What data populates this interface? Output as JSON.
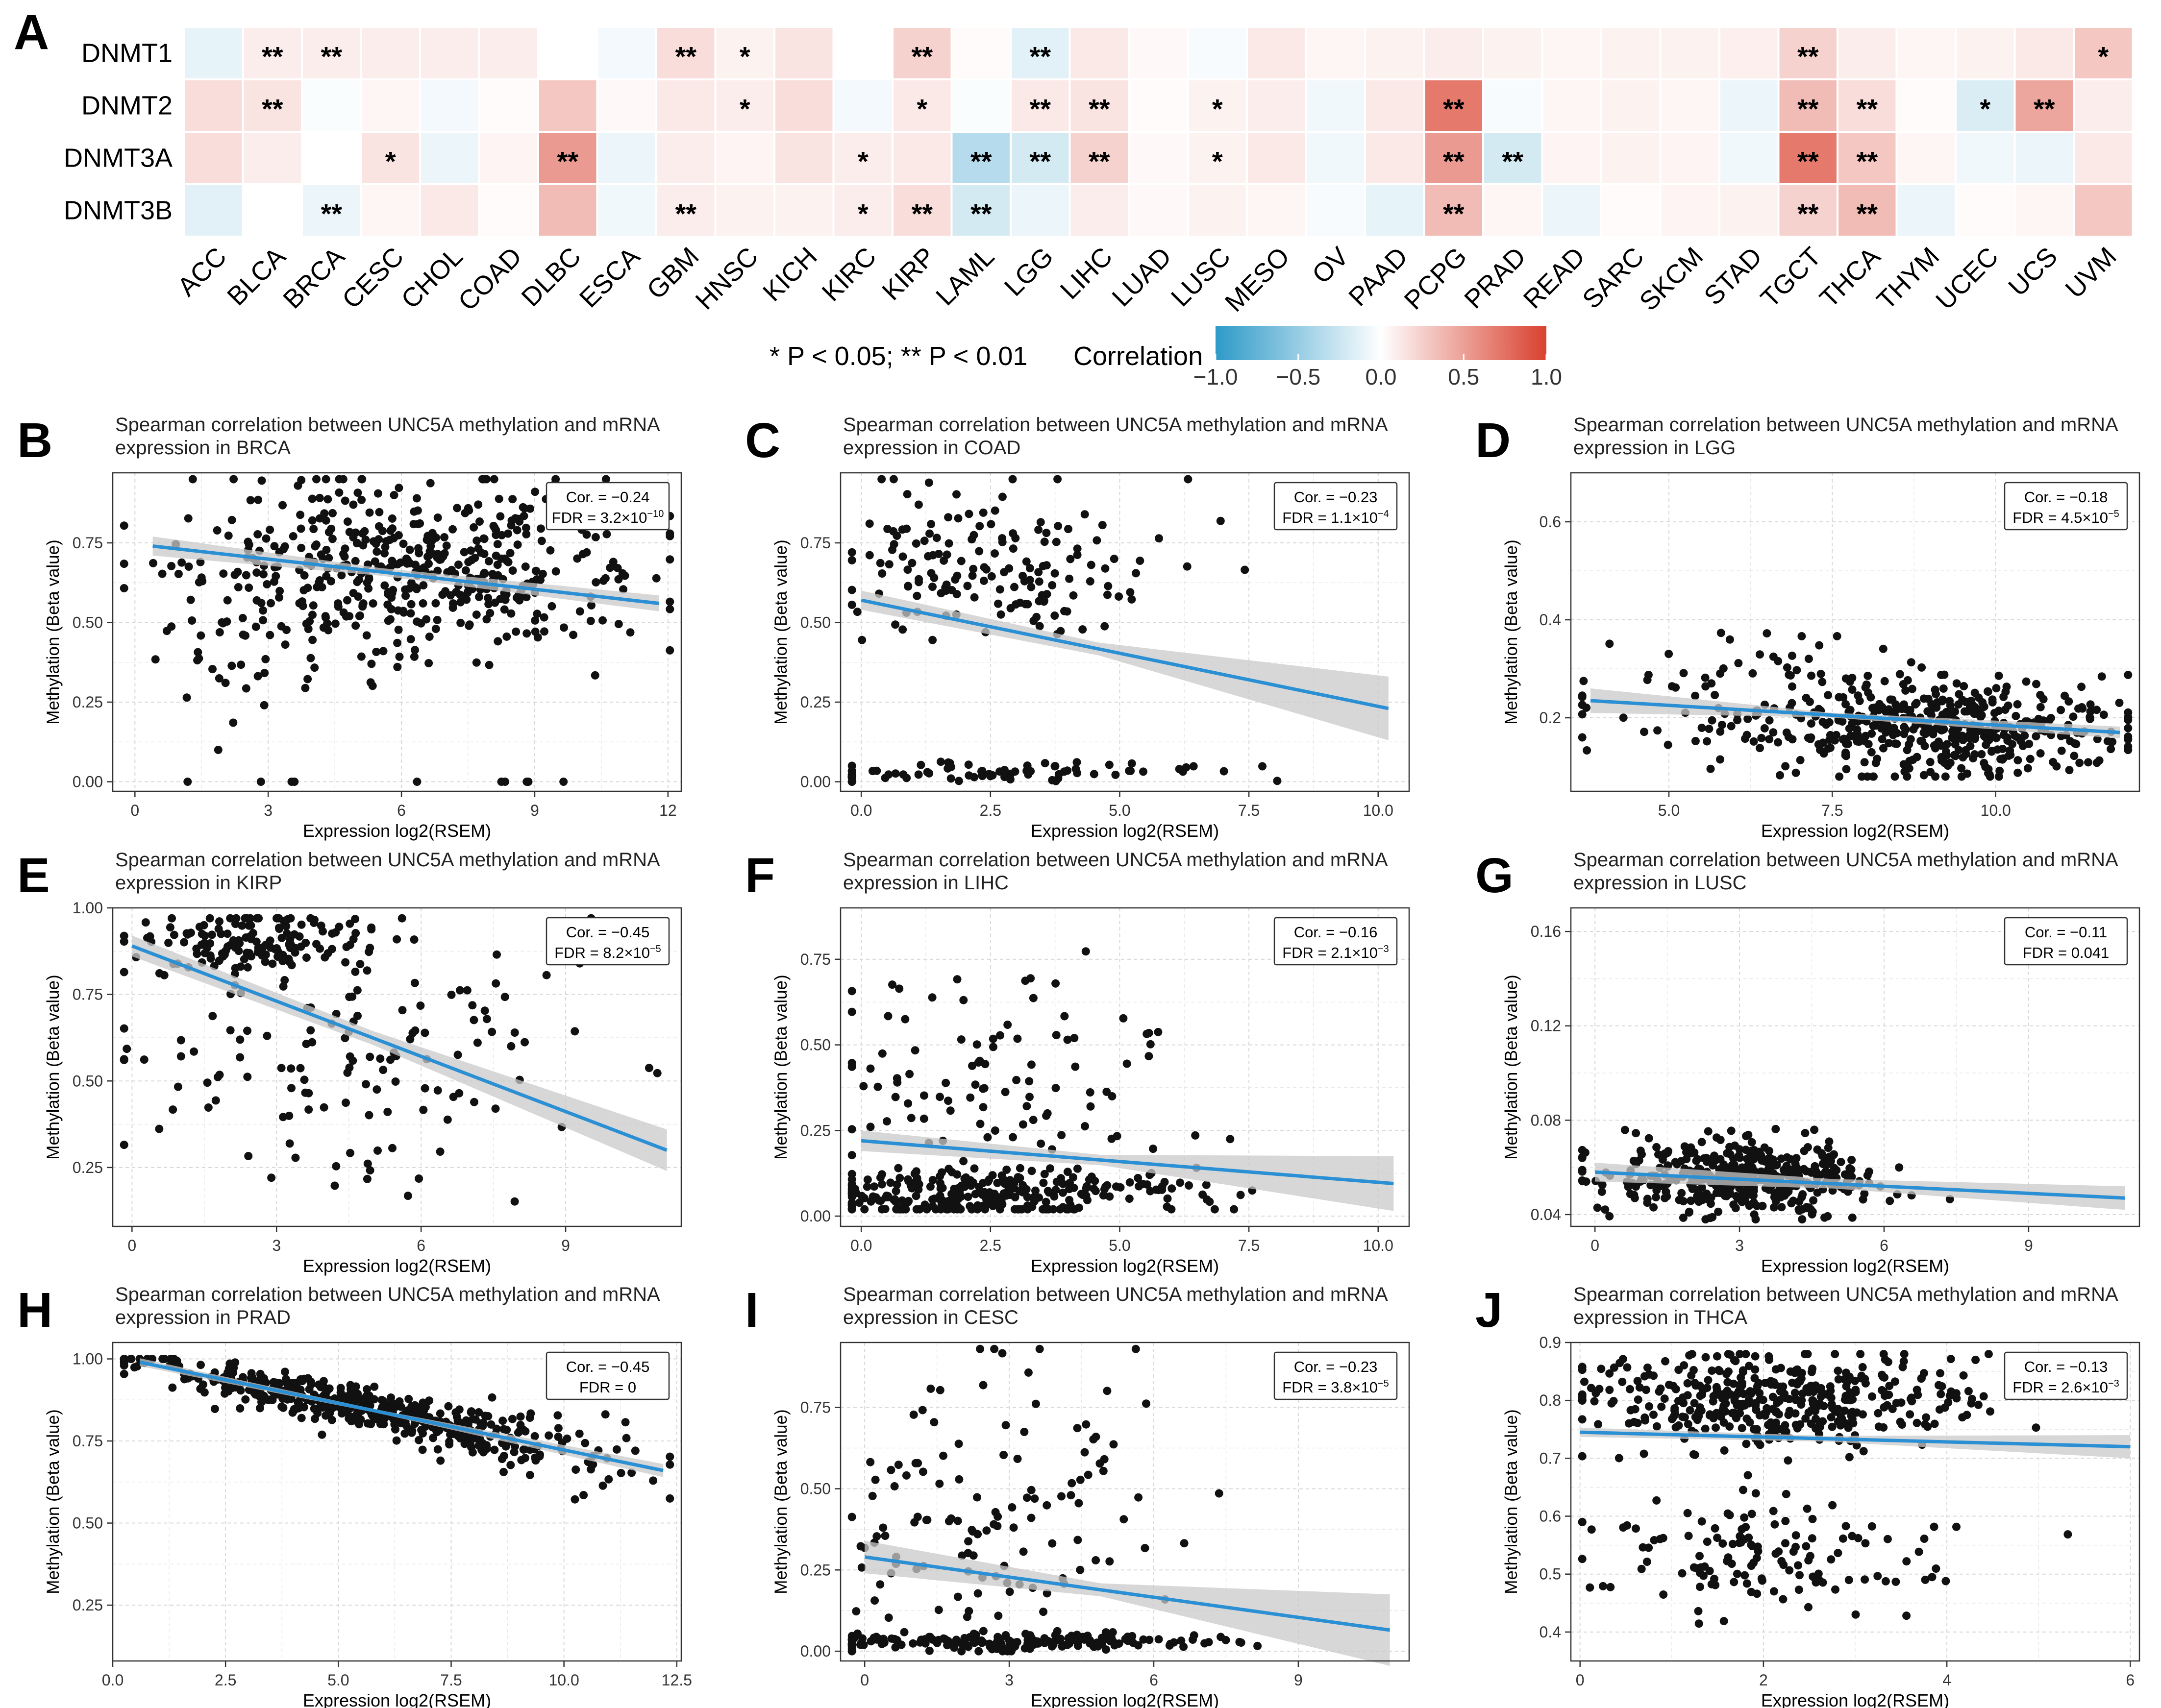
{
  "colors": {
    "neg": "#2e9ac8",
    "zero": "#ffffff",
    "pos": "#d9412f",
    "line": "#2b8fd4",
    "band": "#c9c9c9",
    "point": "#111111",
    "grid": "#d8d8d8"
  },
  "panel_a": {
    "letter": "A",
    "rows": [
      "DNMT1",
      "DNMT2",
      "DNMT3A",
      "DNMT3B"
    ],
    "columns": [
      "ACC",
      "BLCA",
      "BRCA",
      "CESC",
      "CHOL",
      "COAD",
      "DLBC",
      "ESCA",
      "GBM",
      "HNSC",
      "KICH",
      "KIRC",
      "KIRP",
      "LAML",
      "LGG",
      "LIHC",
      "LUAD",
      "LUSC",
      "MESO",
      "OV",
      "PAAD",
      "PCPG",
      "PRAD",
      "READ",
      "SARC",
      "SKCM",
      "STAD",
      "TGCT",
      "THCA",
      "THYM",
      "UCEC",
      "UCS",
      "UVM"
    ],
    "values": [
      [
        -0.1,
        0.08,
        0.08,
        0.08,
        0.08,
        0.08,
        0.0,
        -0.05,
        0.15,
        0.06,
        0.12,
        0.0,
        0.2,
        0.02,
        -0.12,
        0.1,
        0.03,
        -0.03,
        0.1,
        0.04,
        0.06,
        0.08,
        0.06,
        0.04,
        0.06,
        0.06,
        0.07,
        0.2,
        0.08,
        0.04,
        0.06,
        0.1,
        0.25
      ],
      [
        0.15,
        0.12,
        -0.02,
        0.04,
        -0.05,
        0.02,
        0.25,
        0.03,
        0.1,
        0.08,
        0.15,
        -0.05,
        0.1,
        -0.02,
        0.1,
        0.12,
        0.02,
        0.06,
        0.08,
        -0.06,
        0.1,
        0.6,
        -0.03,
        0.04,
        0.06,
        0.04,
        -0.08,
        0.3,
        0.15,
        0.02,
        -0.15,
        0.4,
        0.08
      ],
      [
        0.15,
        0.08,
        0.0,
        0.12,
        -0.08,
        0.05,
        0.45,
        -0.08,
        0.08,
        0.05,
        0.12,
        0.08,
        0.1,
        -0.3,
        -0.18,
        0.2,
        0.03,
        0.06,
        0.1,
        -0.06,
        0.1,
        0.45,
        -0.18,
        0.05,
        0.06,
        0.05,
        -0.06,
        0.6,
        0.25,
        0.04,
        -0.06,
        -0.08,
        0.1
      ],
      [
        -0.12,
        0.0,
        -0.08,
        0.04,
        0.1,
        0.02,
        0.3,
        -0.06,
        0.08,
        0.06,
        0.06,
        0.08,
        0.15,
        -0.18,
        -0.08,
        0.08,
        0.03,
        0.06,
        0.04,
        -0.03,
        -0.1,
        0.3,
        0.04,
        -0.08,
        0.02,
        0.05,
        0.06,
        0.2,
        0.3,
        -0.08,
        0.02,
        0.04,
        0.25
      ]
    ],
    "stars": [
      [
        "",
        "**",
        "**",
        "",
        "",
        "",
        "",
        "",
        "**",
        "*",
        "",
        "",
        "**",
        "",
        "**",
        "",
        "",
        "",
        "",
        "",
        "",
        "",
        "",
        "",
        "",
        "",
        "",
        "**",
        "",
        "",
        "",
        "",
        "*"
      ],
      [
        "",
        "**",
        "",
        "",
        "",
        "",
        "",
        "",
        "",
        "*",
        "",
        "",
        "*",
        "",
        "**",
        "**",
        "",
        "*",
        "",
        "",
        "",
        "**",
        "",
        "",
        "",
        "",
        "",
        "**",
        "**",
        "",
        "*",
        "**",
        ""
      ],
      [
        "",
        "",
        "",
        "*",
        "",
        "",
        "**",
        "",
        "",
        "",
        "",
        "*",
        "",
        "**",
        "**",
        "**",
        "",
        "*",
        "",
        "",
        "",
        "**",
        "**",
        "",
        "",
        "",
        "",
        "**",
        "**",
        "",
        "",
        "",
        ""
      ],
      [
        "",
        "",
        "**",
        "",
        "",
        "",
        "",
        "",
        "**",
        "",
        "",
        "*",
        "**",
        "**",
        "",
        "",
        "",
        "",
        "",
        "",
        "",
        "**",
        "",
        "",
        "",
        "",
        "",
        "**",
        "**",
        "",
        "",
        "",
        ""
      ]
    ],
    "sig_note": "* P < 0.05; ** P < 0.01",
    "legend_title": "Correlation",
    "legend_ticks": [
      "−1.0",
      "−0.5",
      "0.0",
      "0.5",
      "1.0"
    ]
  },
  "chart_data": [
    {
      "type": "scatter",
      "letter": "B",
      "title1": "Spearman correlation between UNC5A methylation and mRNA",
      "title2": "expression in BRCA",
      "xlabel": "Expression log2(RSEM)",
      "ylabel": "Methylation (Beta value)",
      "xlim": [
        -0.5,
        12.3
      ],
      "ylim": [
        -0.03,
        0.97
      ],
      "xticks": [
        0,
        3,
        6,
        9,
        12
      ],
      "xtick_labels": [
        "0",
        "3",
        "6",
        "9",
        "12"
      ],
      "yticks": [
        0,
        0.25,
        0.5,
        0.75
      ],
      "ytick_labels": [
        "0.00",
        "0.25",
        "0.50",
        "0.75"
      ],
      "cor": "Cor. = −0.24",
      "fdr": "FDR = 3.2×10",
      "fdr_exp": "−10",
      "fit": [
        0.4,
        0.74,
        11.8,
        0.56
      ],
      "band": [
        0.03,
        0.012,
        0.025
      ],
      "seed": 11,
      "n": 520,
      "cloud": [
        [
          6.5,
          2.4,
          0.68,
          0.14,
          0.65
        ],
        [
          2.5,
          1.3,
          0.55,
          0.2,
          0.15
        ]
      ],
      "low_frac": 0.03,
      "yrange": [
        0.1,
        0.95
      ]
    },
    {
      "type": "scatter",
      "letter": "C",
      "title1": "Spearman correlation between UNC5A methylation and mRNA",
      "title2": "expression in COAD",
      "xlabel": "Expression log2(RSEM)",
      "ylabel": "Methylation (Beta value)",
      "xlim": [
        -0.4,
        10.6
      ],
      "ylim": [
        -0.03,
        0.97
      ],
      "xticks": [
        0,
        2.5,
        5,
        7.5,
        10
      ],
      "xtick_labels": [
        "0.0",
        "2.5",
        "5.0",
        "7.5",
        "10.0"
      ],
      "yticks": [
        0,
        0.25,
        0.5,
        0.75
      ],
      "ytick_labels": [
        "0.00",
        "0.25",
        "0.50",
        "0.75"
      ],
      "cor": "Cor. = −0.23",
      "fdr": "FDR = 1.1×10",
      "fdr_exp": "−4",
      "fit": [
        0,
        0.57,
        10.2,
        0.23
      ],
      "band": [
        0.03,
        0.02,
        0.1
      ],
      "seed": 21,
      "n": 240,
      "cloud": [
        [
          2.6,
          1.6,
          0.68,
          0.12,
          0.65
        ],
        [
          2.5,
          2.5,
          0.03,
          0.015,
          0.35
        ]
      ],
      "low_frac": 0,
      "yrange": [
        0,
        0.95
      ]
    },
    {
      "type": "scatter",
      "letter": "D",
      "title1": "Spearman correlation between UNC5A methylation and mRNA",
      "title2": "expression in LGG",
      "xlabel": "Expression log2(RSEM)",
      "ylabel": "Methylation (Beta value)",
      "xlim": [
        3.5,
        12.2
      ],
      "ylim": [
        0.05,
        0.7
      ],
      "xticks": [
        5,
        7.5,
        10
      ],
      "xtick_labels": [
        "5.0",
        "7.5",
        "10.0"
      ],
      "yticks": [
        0.2,
        0.4,
        0.6
      ],
      "ytick_labels": [
        "0.2",
        "0.4",
        "0.6"
      ],
      "cor": "Cor. = −0.18",
      "fdr": "FDR = 4.5×10",
      "fdr_exp": "−5",
      "fit": [
        3.8,
        0.235,
        11.9,
        0.17
      ],
      "band": [
        0.025,
        0.005,
        0.012
      ],
      "seed": 31,
      "n": 520,
      "cloud": [
        [
          9.3,
          1.3,
          0.18,
          0.05,
          0.8
        ],
        [
          6.5,
          1.5,
          0.22,
          0.07,
          0.2
        ]
      ],
      "low_frac": 0,
      "yrange": [
        0.08,
        0.65
      ]
    },
    {
      "type": "scatter",
      "letter": "E",
      "title1": "Spearman correlation between UNC5A methylation and mRNA",
      "title2": "expression in KIRP",
      "xlabel": "Expression log2(RSEM)",
      "ylabel": "Methylation (Beta value)",
      "xlim": [
        -0.4,
        11.4
      ],
      "ylim": [
        0.08,
        1.0
      ],
      "xticks": [
        0,
        3,
        6,
        9
      ],
      "xtick_labels": [
        "0",
        "3",
        "6",
        "9"
      ],
      "yticks": [
        0.25,
        0.5,
        0.75,
        1.0
      ],
      "ytick_labels": [
        "0.25",
        "0.50",
        "0.75",
        "1.00"
      ],
      "cor": "Cor. = −0.45",
      "fdr": "FDR = 8.2×10",
      "fdr_exp": "−5",
      "fit": [
        0,
        0.89,
        11.1,
        0.3
      ],
      "band": [
        0.03,
        0.02,
        0.06
      ],
      "seed": 41,
      "n": 280,
      "cloud": [
        [
          2.6,
          1.4,
          0.9,
          0.05,
          0.5
        ],
        [
          4.2,
          2.5,
          0.55,
          0.2,
          0.5
        ]
      ],
      "low_frac": 0,
      "yrange": [
        0.1,
        0.97
      ]
    },
    {
      "type": "scatter",
      "letter": "F",
      "title1": "Spearman correlation between UNC5A methylation and mRNA",
      "title2": "expression in LIHC",
      "xlabel": "Expression log2(RSEM)",
      "ylabel": "Methylation (Beta value)",
      "xlim": [
        -0.4,
        10.6
      ],
      "ylim": [
        -0.03,
        0.9
      ],
      "xticks": [
        0,
        2.5,
        5,
        7.5,
        10
      ],
      "xtick_labels": [
        "0.0",
        "2.5",
        "5.0",
        "7.5",
        "10.0"
      ],
      "yticks": [
        0,
        0.25,
        0.5,
        0.75
      ],
      "ytick_labels": [
        "0.00",
        "0.25",
        "0.50",
        "0.75"
      ],
      "cor": "Cor. = −0.16",
      "fdr": "FDR = 2.1×10",
      "fdr_exp": "−3",
      "fit": [
        0,
        0.22,
        10.3,
        0.095
      ],
      "band": [
        0.03,
        0.015,
        0.08
      ],
      "seed": 51,
      "n": 380,
      "cloud": [
        [
          2.6,
          1.8,
          0.06,
          0.04,
          0.7
        ],
        [
          2.8,
          1.8,
          0.35,
          0.18,
          0.3
        ]
      ],
      "low_frac": 0,
      "yrange": [
        0.02,
        0.88
      ]
    },
    {
      "type": "scatter",
      "letter": "G",
      "title1": "Spearman correlation between UNC5A methylation and mRNA",
      "title2": "expression in LUSC",
      "xlabel": "Expression log2(RSEM)",
      "ylabel": "Methylation (Beta value)",
      "xlim": [
        -0.5,
        11.3
      ],
      "ylim": [
        0.035,
        0.17
      ],
      "xticks": [
        0,
        3,
        6,
        9
      ],
      "xtick_labels": [
        "0",
        "3",
        "6",
        "9"
      ],
      "yticks": [
        0.04,
        0.08,
        0.12,
        0.16
      ],
      "ytick_labels": [
        "0.04",
        "0.08",
        "0.12",
        "0.16"
      ],
      "cor": "Cor. = −0.11",
      "fdr": "FDR = 0.041",
      "fdr_exp": "",
      "fit": [
        0,
        0.058,
        11,
        0.047
      ],
      "band": [
        0.004,
        0.002,
        0.005
      ],
      "seed": 61,
      "n": 440,
      "cloud": [
        [
          3.1,
          1.4,
          0.055,
          0.008,
          1.0
        ]
      ],
      "low_frac": 0,
      "yrange": [
        0.038,
        0.09
      ]
    },
    {
      "type": "scatter",
      "letter": "H",
      "title1": "Spearman correlation between UNC5A methylation and mRNA",
      "title2": "expression in PRAD",
      "xlabel": "Expression log2(RSEM)",
      "ylabel": "Methylation (Beta value)",
      "xlim": [
        0,
        12.6
      ],
      "ylim": [
        0.08,
        1.05
      ],
      "xticks": [
        0,
        2.5,
        5,
        7.5,
        10,
        12.5
      ],
      "xtick_labels": [
        "0.0",
        "2.5",
        "5.0",
        "7.5",
        "10.0",
        "12.5"
      ],
      "yticks": [
        0.25,
        0.5,
        0.75,
        1.0
      ],
      "ytick_labels": [
        "0.25",
        "0.50",
        "0.75",
        "1.00"
      ],
      "cor": "Cor. = −0.45",
      "fdr": "FDR = 0",
      "fdr_exp": "",
      "fit": [
        0.6,
        0.99,
        12.2,
        0.66
      ],
      "band": [
        0.012,
        0.005,
        0.02
      ],
      "seed": 71,
      "n": 520,
      "cloud": [
        [
          5.5,
          2.6,
          0.89,
          0.05,
          1.0
        ]
      ],
      "low_frac": 0,
      "yrange": [
        0.12,
        1.0
      ],
      "trend": true
    },
    {
      "type": "scatter",
      "letter": "I",
      "title1": "Spearman correlation between UNC5A methylation and mRNA",
      "title2": "expression in CESC",
      "xlabel": "Expression log2(RSEM)",
      "ylabel": "Methylation (Beta value)",
      "xlim": [
        -0.5,
        11.3
      ],
      "ylim": [
        -0.03,
        0.95
      ],
      "xticks": [
        0,
        3,
        6,
        9
      ],
      "xtick_labels": [
        "0",
        "3",
        "6",
        "9"
      ],
      "yticks": [
        0,
        0.25,
        0.5,
        0.75
      ],
      "ytick_labels": [
        "0.00",
        "0.25",
        "0.50",
        "0.75"
      ],
      "cor": "Cor. = −0.23",
      "fdr": "FDR = 3.8×10",
      "fdr_exp": "−5",
      "fit": [
        0,
        0.29,
        10.9,
        0.065
      ],
      "band": [
        0.05,
        0.02,
        0.11
      ],
      "seed": 81,
      "n": 300,
      "cloud": [
        [
          3.0,
          2.2,
          0.03,
          0.012,
          0.6
        ],
        [
          2.6,
          1.8,
          0.45,
          0.25,
          0.4
        ]
      ],
      "low_frac": 0,
      "yrange": [
        0,
        0.93
      ]
    },
    {
      "type": "scatter",
      "letter": "J",
      "title1": "Spearman correlation between UNC5A methylation and mRNA",
      "title2": "expression in THCA",
      "xlabel": "Expression log2(RSEM)",
      "ylabel": "Methylation (Beta value)",
      "xlim": [
        -0.1,
        6.1
      ],
      "ylim": [
        0.35,
        0.9
      ],
      "xticks": [
        0,
        2,
        4,
        6
      ],
      "xtick_labels": [
        "0",
        "2",
        "4",
        "6"
      ],
      "yticks": [
        0.4,
        0.5,
        0.6,
        0.7,
        0.8,
        0.9
      ],
      "ytick_labels": [
        "0.4",
        "0.5",
        "0.6",
        "0.7",
        "0.8",
        "0.9"
      ],
      "cor": "Cor. = −0.13",
      "fdr": "FDR = 2.6×10",
      "fdr_exp": "−3",
      "fit": [
        0,
        0.745,
        6,
        0.72
      ],
      "band": [
        0.008,
        0.005,
        0.02
      ],
      "seed": 91,
      "n": 560,
      "cloud": [
        [
          2.2,
          1.1,
          0.8,
          0.04,
          0.75
        ],
        [
          2.0,
          0.9,
          0.53,
          0.05,
          0.25
        ]
      ],
      "low_frac": 0,
      "yrange": [
        0.36,
        0.88
      ]
    }
  ]
}
